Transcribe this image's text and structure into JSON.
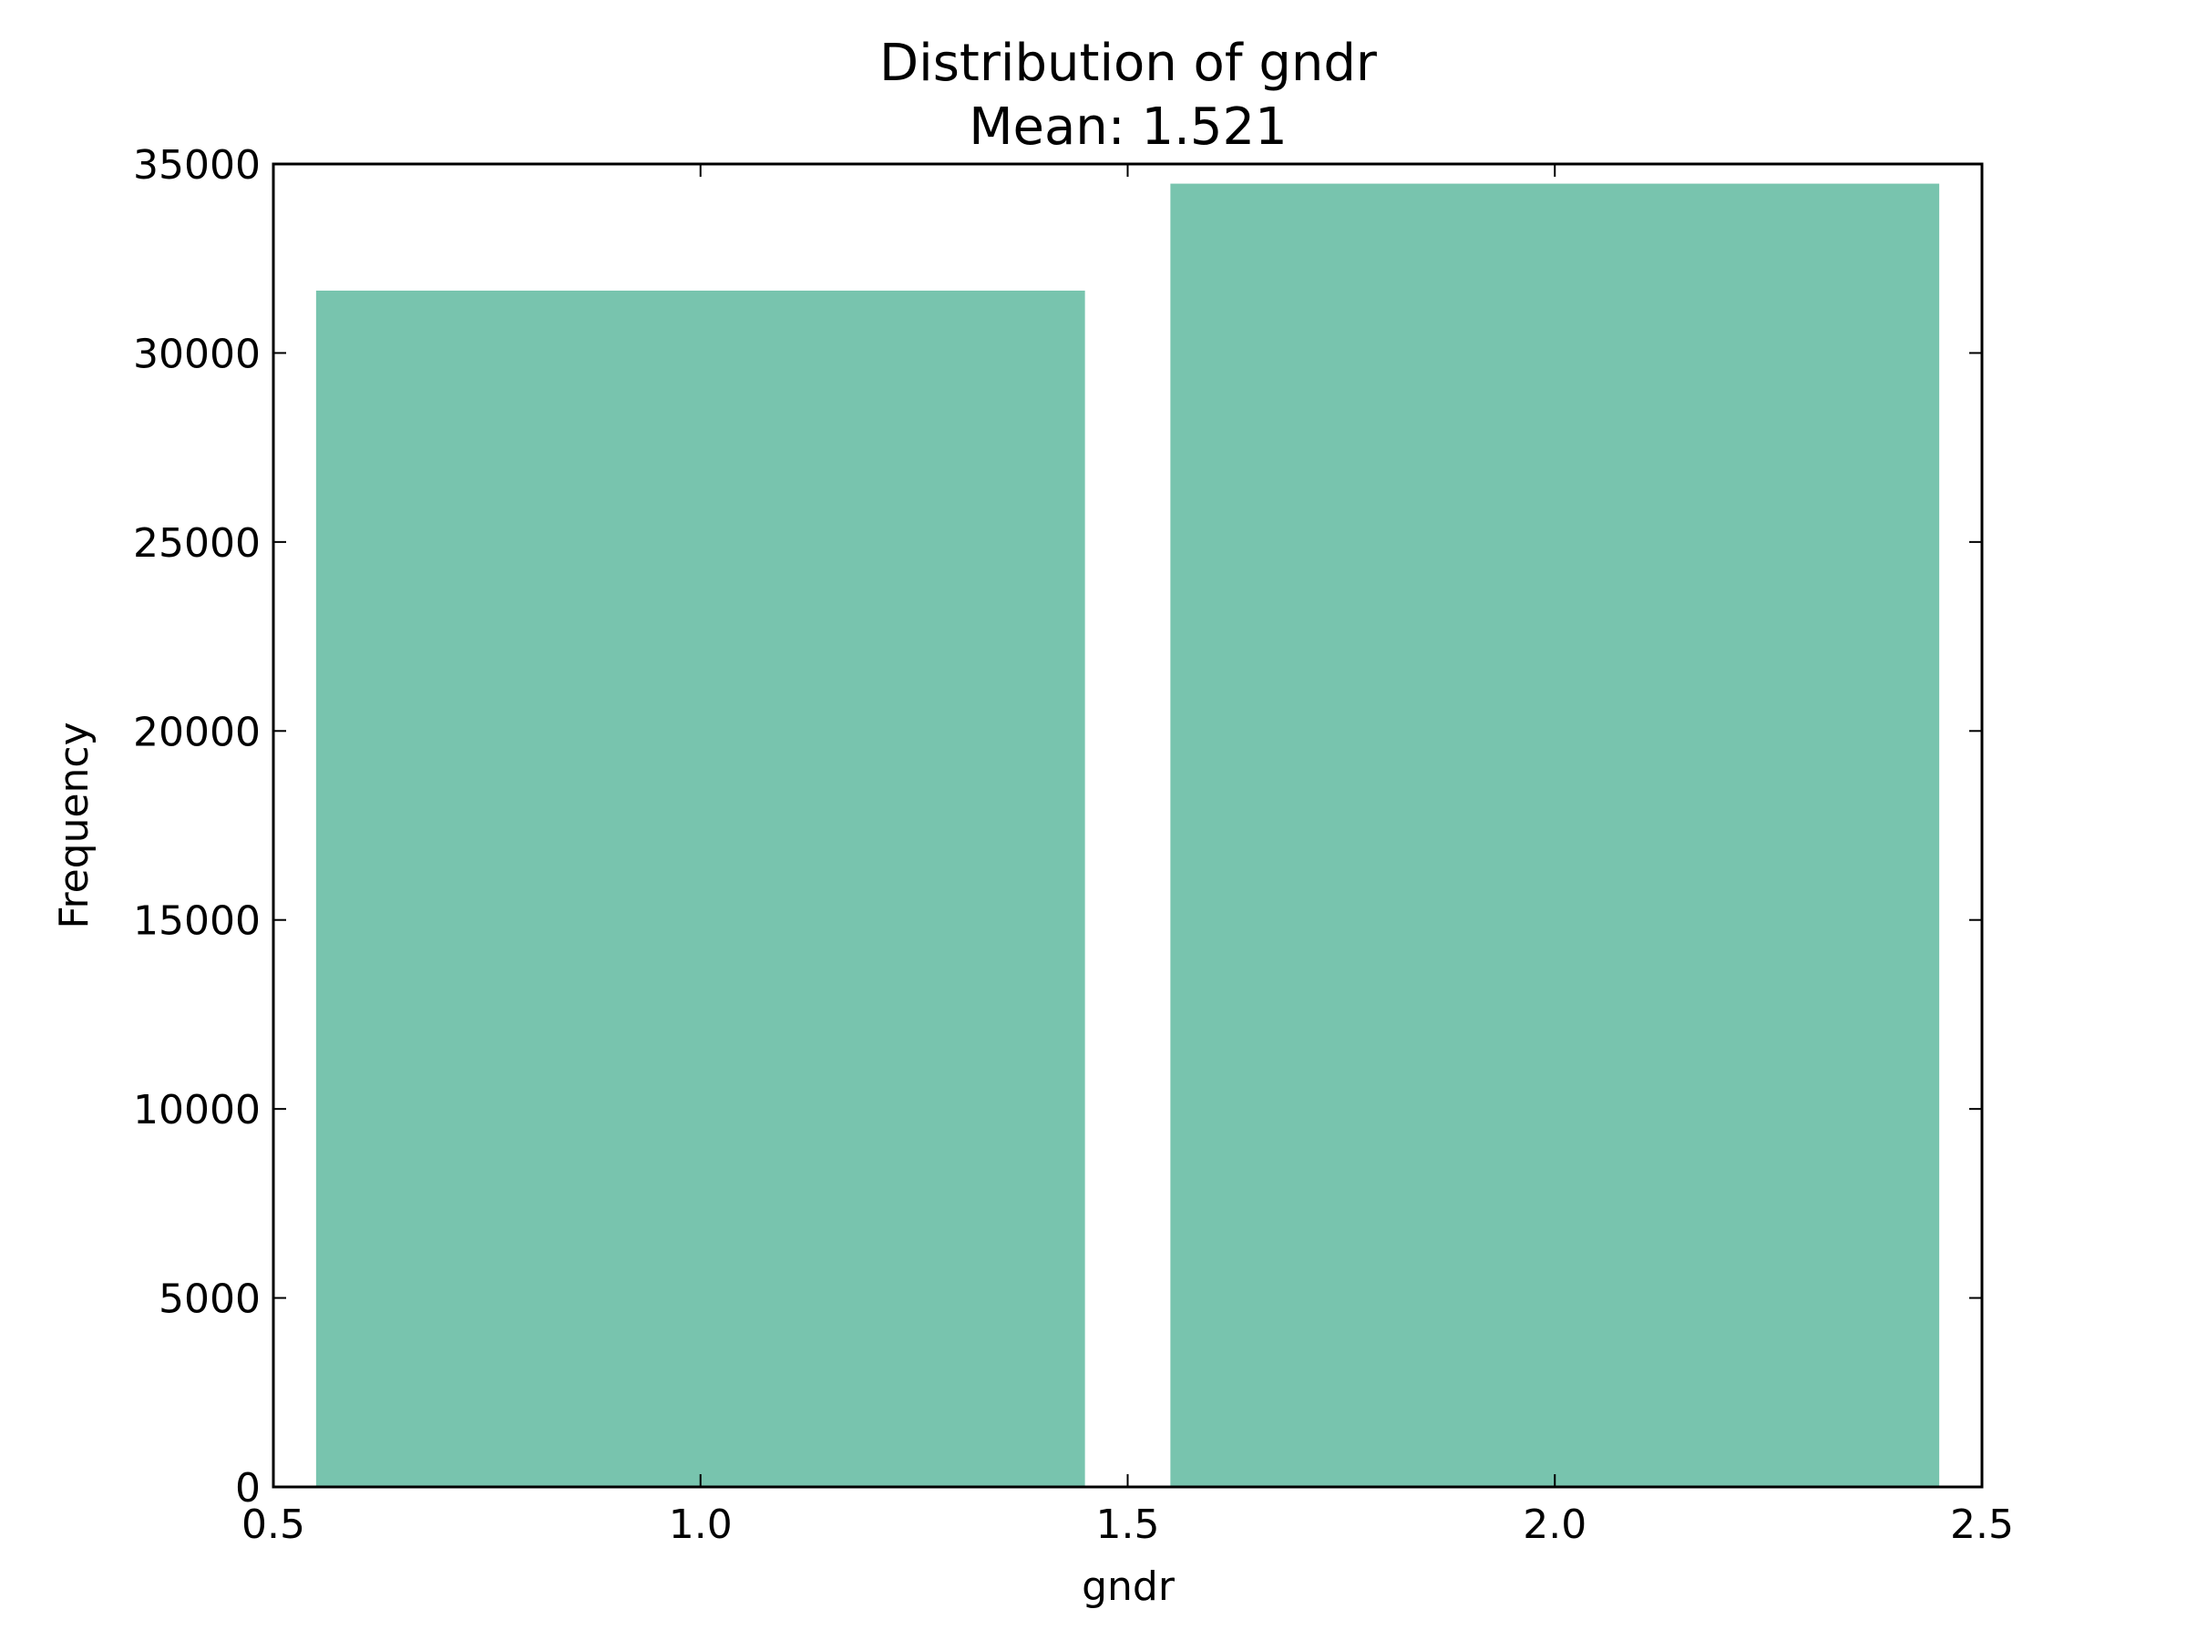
{
  "chart_data": {
    "type": "bar",
    "title": "Distribution of gndr",
    "subtitle": "Mean: 1.521",
    "xlabel": "gndr",
    "ylabel": "Frequency",
    "xlim": [
      0.5,
      2.5
    ],
    "ylim": [
      0,
      35000
    ],
    "xticks": [
      "0.5",
      "1.0",
      "1.5",
      "2.0",
      "2.5"
    ],
    "yticks": [
      "0",
      "5000",
      "10000",
      "15000",
      "20000",
      "25000",
      "30000",
      "35000"
    ],
    "bars": [
      {
        "x_start": 0.55,
        "x_end": 1.45,
        "value": 31650
      },
      {
        "x_start": 1.55,
        "x_end": 2.45,
        "value": 34480
      }
    ],
    "bar_color": "#78c4ae",
    "grid": false
  }
}
